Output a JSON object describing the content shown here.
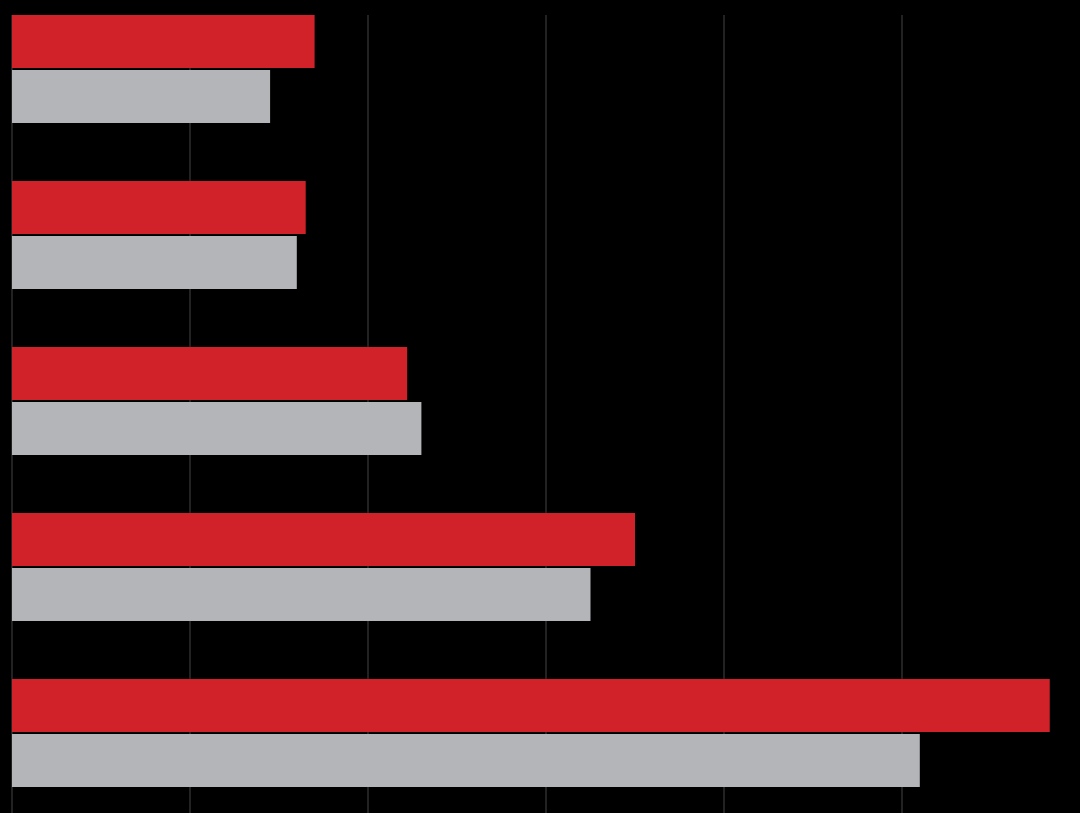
{
  "chart_data": {
    "type": "barh",
    "categories": [
      null,
      null,
      null,
      null,
      null
    ],
    "series": [
      {
        "color": "#d12229",
        "values": [
          1.7,
          1.65,
          2.22,
          3.5,
          5.83
        ]
      },
      {
        "color": "#b4b5b8",
        "values": [
          1.45,
          1.6,
          2.3,
          3.25,
          5.1
        ]
      }
    ],
    "xlim": [
      0,
      6
    ],
    "xticks": [
      0,
      1,
      2,
      3,
      4,
      5
    ],
    "grid": true,
    "background": "#000000",
    "grid_color": "#2e2e2e"
  }
}
